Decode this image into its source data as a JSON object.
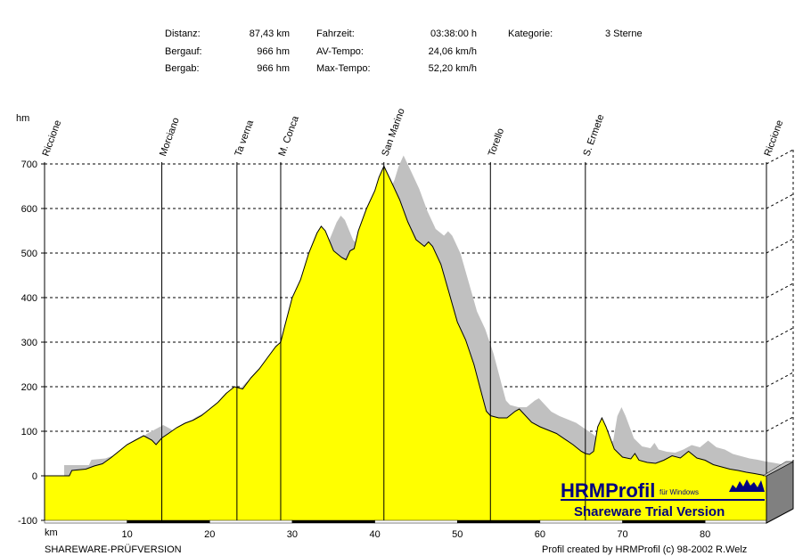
{
  "stats": {
    "distanz_label": "Distanz:",
    "distanz_value": "87,43 km",
    "bergauf_label": "Bergauf:",
    "bergauf_value": "966 hm",
    "bergab_label": "Bergab:",
    "bergab_value": "966 hm",
    "fahrzeit_label": "Fahrzeit:",
    "fahrzeit_value": "03:38:00 h",
    "av_label": "AV-Tempo:",
    "av_value": "24,06 km/h",
    "max_label": "Max-Tempo:",
    "max_value": "52,20 km/h",
    "kategorie_label": "Kategorie:",
    "kategorie_value": "3 Sterne"
  },
  "footer": {
    "left": "SHAREWARE-PRÜFVERSION",
    "right": "Profil created by HRMProfil (c) 98-2002 R.Welz"
  },
  "logo": {
    "brand": "HRMProfil",
    "sub": "für Windows",
    "banner": "Shareware Trial  Version"
  },
  "colors": {
    "profile_fill": "#ffff00",
    "shadow_fill": "#c0c0c0",
    "base_side": "#808080"
  },
  "chart_data": {
    "type": "area",
    "ylabel": "hm",
    "xlabel": "km",
    "xlim": [
      0,
      87.43
    ],
    "ylim": [
      -100,
      700
    ],
    "yticks": [
      700,
      600,
      500,
      400,
      300,
      200,
      100,
      0,
      -100
    ],
    "xticks": [
      10,
      20,
      30,
      40,
      50,
      60,
      70,
      80
    ],
    "grid": "horizontal dashed",
    "waypoints": [
      {
        "km": 0,
        "name": "Riccione"
      },
      {
        "km": 14.2,
        "name": "Morciano"
      },
      {
        "km": 23.3,
        "name": "Ta verna"
      },
      {
        "km": 28.6,
        "name": "M. Conca"
      },
      {
        "km": 41.1,
        "name": "San Marino"
      },
      {
        "km": 54.0,
        "name": "Torello"
      },
      {
        "km": 65.5,
        "name": "S. Ermete"
      },
      {
        "km": 87.43,
        "name": "Riccione"
      }
    ],
    "elevation": [
      [
        0,
        0
      ],
      [
        3,
        0
      ],
      [
        3.3,
        12
      ],
      [
        5,
        15
      ],
      [
        6,
        22
      ],
      [
        7,
        27
      ],
      [
        8,
        40
      ],
      [
        9,
        55
      ],
      [
        10,
        70
      ],
      [
        11,
        80
      ],
      [
        12,
        90
      ],
      [
        13,
        80
      ],
      [
        13.5,
        70
      ],
      [
        14.2,
        85
      ],
      [
        15,
        95
      ],
      [
        16,
        108
      ],
      [
        17,
        118
      ],
      [
        18,
        125
      ],
      [
        19,
        135
      ],
      [
        20,
        150
      ],
      [
        21,
        165
      ],
      [
        22,
        185
      ],
      [
        23,
        200
      ],
      [
        24,
        195
      ],
      [
        25,
        220
      ],
      [
        26,
        240
      ],
      [
        27,
        265
      ],
      [
        28,
        290
      ],
      [
        28.6,
        300
      ],
      [
        29,
        330
      ],
      [
        30,
        400
      ],
      [
        31,
        440
      ],
      [
        32,
        500
      ],
      [
        33,
        545
      ],
      [
        33.5,
        560
      ],
      [
        34,
        550
      ],
      [
        35,
        505
      ],
      [
        36,
        490
      ],
      [
        36.5,
        485
      ],
      [
        37,
        505
      ],
      [
        37.5,
        510
      ],
      [
        38,
        550
      ],
      [
        39,
        600
      ],
      [
        40,
        640
      ],
      [
        40.5,
        670
      ],
      [
        41.1,
        695
      ],
      [
        42,
        660
      ],
      [
        43,
        620
      ],
      [
        44,
        570
      ],
      [
        45,
        530
      ],
      [
        46,
        515
      ],
      [
        46.5,
        525
      ],
      [
        47,
        515
      ],
      [
        48,
        475
      ],
      [
        49,
        410
      ],
      [
        50,
        345
      ],
      [
        51,
        305
      ],
      [
        52,
        250
      ],
      [
        53,
        180
      ],
      [
        53.5,
        145
      ],
      [
        54,
        135
      ],
      [
        55,
        130
      ],
      [
        56,
        130
      ],
      [
        57,
        145
      ],
      [
        57.5,
        150
      ],
      [
        58,
        140
      ],
      [
        59,
        120
      ],
      [
        60,
        110
      ],
      [
        62,
        95
      ],
      [
        64,
        70
      ],
      [
        65,
        55
      ],
      [
        65.5,
        50
      ],
      [
        66,
        48
      ],
      [
        66.5,
        55
      ],
      [
        67,
        110
      ],
      [
        67.5,
        130
      ],
      [
        68,
        110
      ],
      [
        69,
        60
      ],
      [
        70,
        42
      ],
      [
        71,
        38
      ],
      [
        71.5,
        50
      ],
      [
        72,
        35
      ],
      [
        73,
        30
      ],
      [
        74,
        28
      ],
      [
        75,
        35
      ],
      [
        76,
        45
      ],
      [
        77,
        40
      ],
      [
        78,
        55
      ],
      [
        79,
        40
      ],
      [
        80,
        35
      ],
      [
        81,
        25
      ],
      [
        82,
        20
      ],
      [
        83,
        15
      ],
      [
        84,
        12
      ],
      [
        85,
        8
      ],
      [
        86,
        5
      ],
      [
        87.43,
        0
      ]
    ]
  }
}
